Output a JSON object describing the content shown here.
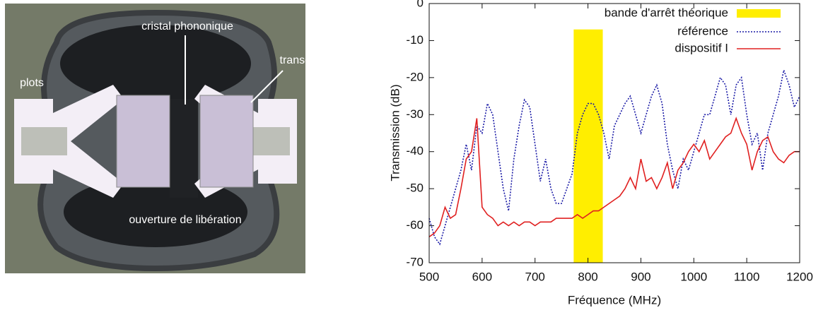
{
  "image": {
    "labels": [
      "cristal phononique",
      "transducteur",
      "plots",
      "ouverture de libération"
    ]
  },
  "chart_data": {
    "type": "line",
    "xlabel": "Fréquence (MHz)",
    "ylabel": "Transmission (dB)",
    "xlim": [
      500,
      1200
    ],
    "ylim": [
      -70,
      0
    ],
    "xticks": [
      500,
      600,
      700,
      800,
      900,
      1000,
      1100,
      1200
    ],
    "yticks": [
      0,
      -10,
      -20,
      -30,
      -40,
      -50,
      -60,
      -70
    ],
    "grid": false,
    "legend": "upper right",
    "band": {
      "name": "bande d'arrêt théorique",
      "color": "#ffee00",
      "x": [
        773,
        828
      ],
      "y": [
        -70,
        -7
      ]
    },
    "x": [
      500,
      510,
      520,
      530,
      540,
      550,
      560,
      570,
      580,
      590,
      600,
      610,
      620,
      630,
      640,
      650,
      660,
      670,
      680,
      690,
      700,
      710,
      720,
      730,
      740,
      750,
      760,
      770,
      780,
      790,
      800,
      810,
      820,
      830,
      840,
      850,
      860,
      870,
      880,
      890,
      900,
      910,
      920,
      930,
      940,
      950,
      960,
      970,
      980,
      990,
      1000,
      1010,
      1020,
      1030,
      1040,
      1050,
      1060,
      1070,
      1080,
      1090,
      1100,
      1110,
      1120,
      1130,
      1140,
      1150,
      1160,
      1170,
      1180,
      1190,
      1200
    ],
    "series": [
      {
        "name": "référence",
        "color": "#1a1aa6",
        "dash": "2,2",
        "values": [
          -58,
          -63,
          -65,
          -60,
          -55,
          -50,
          -45,
          -38,
          -45,
          -33,
          -35,
          -27,
          -30,
          -40,
          -50,
          -56,
          -42,
          -33,
          -26,
          -28,
          -38,
          -48,
          -42,
          -50,
          -54,
          -54,
          -50,
          -46,
          -35,
          -30,
          -27,
          -27,
          -30,
          -35,
          -42,
          -33,
          -30,
          -27,
          -25,
          -30,
          -35,
          -30,
          -25,
          -22,
          -27,
          -38,
          -45,
          -50,
          -42,
          -45,
          -40,
          -35,
          -30,
          -30,
          -25,
          -20,
          -22,
          -30,
          -22,
          -20,
          -30,
          -38,
          -35,
          -45,
          -35,
          -30,
          -25,
          -18,
          -22,
          -28,
          -25
        ]
      },
      {
        "name": "dispositif I",
        "color": "#e02020",
        "values": [
          -63,
          -62,
          -60,
          -55,
          -58,
          -57,
          -50,
          -42,
          -40,
          -31,
          -55,
          -57,
          -58,
          -60,
          -59,
          -60,
          -59,
          -60,
          -59,
          -59,
          -60,
          -59,
          -59,
          -59,
          -58,
          -58,
          -58,
          -58,
          -57,
          -58,
          -57,
          -56,
          -56,
          -55,
          -54,
          -53,
          -52,
          -50,
          -47,
          -50,
          -42,
          -48,
          -47,
          -50,
          -47,
          -43,
          -50,
          -45,
          -43,
          -40,
          -38,
          -40,
          -37,
          -42,
          -40,
          -38,
          -36,
          -35,
          -31,
          -35,
          -38,
          -45,
          -40,
          -37,
          -36,
          -40,
          -42,
          -43,
          -41,
          -40,
          -40
        ]
      }
    ]
  }
}
